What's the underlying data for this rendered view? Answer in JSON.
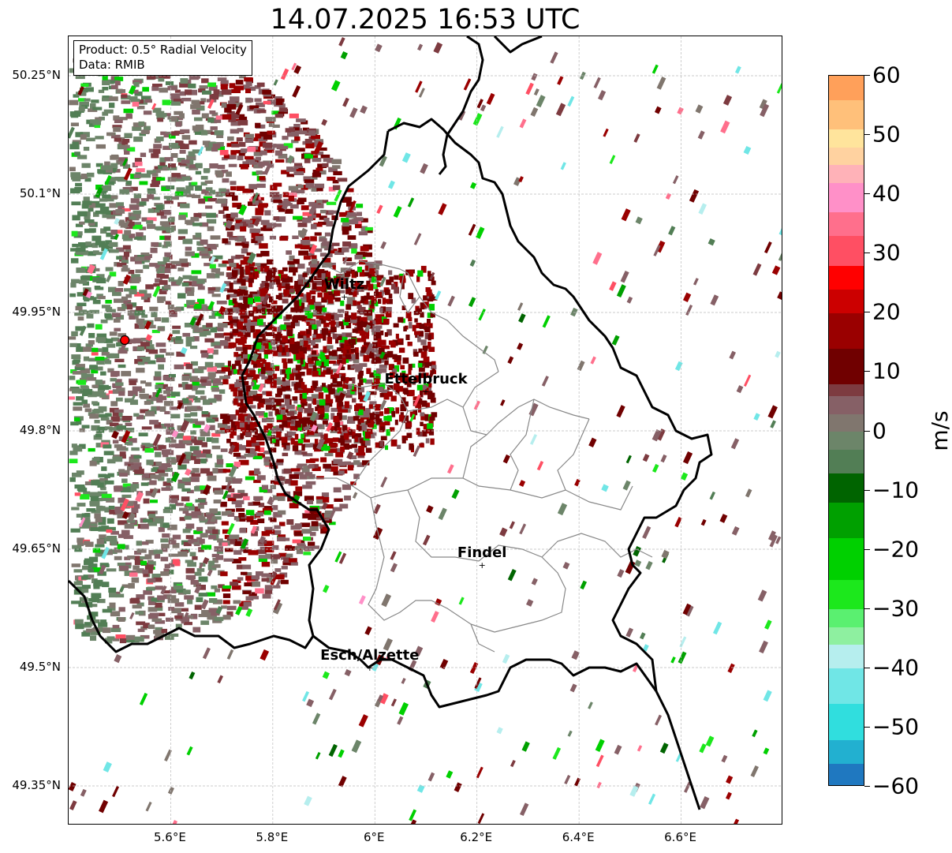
{
  "title": "14.07.2025 16:53 UTC",
  "info_box": {
    "product": "Product: 0.5° Radial Velocity",
    "data": "Data: RMIB"
  },
  "map": {
    "lon_range": [
      5.4,
      6.8
    ],
    "lat_range": [
      49.3,
      50.3
    ],
    "radar_site": {
      "lon": 5.51,
      "lat": 49.915
    },
    "lat_ticks": [
      {
        "value": 50.25,
        "label": "50.25°N"
      },
      {
        "value": 50.1,
        "label": "50.1°N"
      },
      {
        "value": 49.95,
        "label": "49.95°N"
      },
      {
        "value": 49.8,
        "label": "49.8°N"
      },
      {
        "value": 49.65,
        "label": "49.65°N"
      },
      {
        "value": 49.5,
        "label": "49.5°N"
      },
      {
        "value": 49.35,
        "label": "49.35°N"
      }
    ],
    "lon_ticks": [
      {
        "value": 5.6,
        "label": "5.6°E"
      },
      {
        "value": 5.8,
        "label": "5.8°E"
      },
      {
        "value": 6.0,
        "label": "6°E"
      },
      {
        "value": 6.2,
        "label": "6.2°E"
      },
      {
        "value": 6.4,
        "label": "6.4°E"
      },
      {
        "value": 6.6,
        "label": "6.6°E"
      }
    ],
    "cities": [
      {
        "name": "Wiltz",
        "lon": 5.94,
        "lat": 49.97
      },
      {
        "name": "Ettelbruck",
        "lon": 6.1,
        "lat": 49.85
      },
      {
        "name": "Findel",
        "lon": 6.21,
        "lat": 49.63
      },
      {
        "name": "Esch/Alzette",
        "lon": 5.99,
        "lat": 49.5
      }
    ],
    "colors": {
      "border": "#000000",
      "admin": "#888888",
      "grid": "#bbbbbb",
      "radar_marker": "#ff0000"
    }
  },
  "colorbar": {
    "unit": "m/s",
    "vmin": -60,
    "vmax": 60,
    "ticks": [
      {
        "value": 60,
        "label": "60"
      },
      {
        "value": 50,
        "label": "50"
      },
      {
        "value": 40,
        "label": "40"
      },
      {
        "value": 30,
        "label": "30"
      },
      {
        "value": 20,
        "label": "20"
      },
      {
        "value": 10,
        "label": "10"
      },
      {
        "value": 0,
        "label": "0"
      },
      {
        "value": -10,
        "label": "−10"
      },
      {
        "value": -20,
        "label": "−20"
      },
      {
        "value": -30,
        "label": "−30"
      },
      {
        "value": -40,
        "label": "−40"
      },
      {
        "value": -50,
        "label": "−50"
      },
      {
        "value": -60,
        "label": "−60"
      }
    ],
    "segments": [
      {
        "from": -60,
        "to": -56,
        "color": "#1f78c0"
      },
      {
        "from": -56,
        "to": -52,
        "color": "#22b0d0"
      },
      {
        "from": -52,
        "to": -46,
        "color": "#30dede"
      },
      {
        "from": -46,
        "to": -40,
        "color": "#70e6e6"
      },
      {
        "from": -40,
        "to": -36,
        "color": "#b6eeee"
      },
      {
        "from": -36,
        "to": -33,
        "color": "#8ef0a0"
      },
      {
        "from": -33,
        "to": -30,
        "color": "#5af070"
      },
      {
        "from": -30,
        "to": -25,
        "color": "#1ce81c"
      },
      {
        "from": -25,
        "to": -18,
        "color": "#00d000"
      },
      {
        "from": -18,
        "to": -12,
        "color": "#00a000"
      },
      {
        "from": -12,
        "to": -7,
        "color": "#006400"
      },
      {
        "from": -7,
        "to": -3,
        "color": "#527e55"
      },
      {
        "from": -3,
        "to": 0,
        "color": "#6c8569"
      },
      {
        "from": 0,
        "to": 3,
        "color": "#80766e"
      },
      {
        "from": 3,
        "to": 6,
        "color": "#866066"
      },
      {
        "from": 6,
        "to": 8,
        "color": "#7d3b40"
      },
      {
        "from": 8,
        "to": 14,
        "color": "#700000"
      },
      {
        "from": 14,
        "to": 20,
        "color": "#9a0000"
      },
      {
        "from": 20,
        "to": 24,
        "color": "#cc0000"
      },
      {
        "from": 24,
        "to": 28,
        "color": "#ff0000"
      },
      {
        "from": 28,
        "to": 33,
        "color": "#ff4f63"
      },
      {
        "from": 33,
        "to": 37,
        "color": "#ff6f8c"
      },
      {
        "from": 37,
        "to": 42,
        "color": "#ff90c8"
      },
      {
        "from": 42,
        "to": 45,
        "color": "#ffb2b8"
      },
      {
        "from": 45,
        "to": 48,
        "color": "#ffd2a0"
      },
      {
        "from": 48,
        "to": 51,
        "color": "#ffe49c"
      },
      {
        "from": 51,
        "to": 56,
        "color": "#ffc07a"
      },
      {
        "from": 56,
        "to": 60,
        "color": "#ffa05a"
      }
    ]
  }
}
